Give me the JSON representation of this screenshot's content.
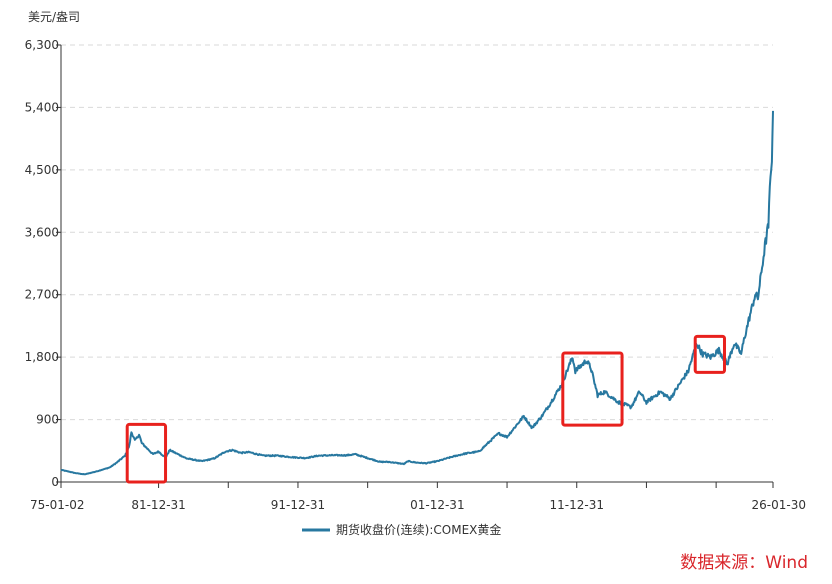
{
  "chart_data": {
    "type": "line",
    "ylabel": "美元/盎司",
    "ylim": [
      0,
      6300
    ],
    "yticks": [
      0,
      900,
      1800,
      2700,
      3600,
      4500,
      5400,
      6300
    ],
    "ytick_labels": [
      "0",
      "900",
      "1,800",
      "2,700",
      "3,600",
      "4,500",
      "5,400",
      "6,300"
    ],
    "xlim": [
      1975.0,
      2026.08
    ],
    "xticks": [
      1975.0,
      1982.0,
      1992.0,
      2002.0,
      2012.0,
      2026.08
    ],
    "xtick_labels": [
      "75-01-02",
      "81-12-31",
      "91-12-31",
      "01-12-31",
      "11-12-31",
      "26-01-30"
    ],
    "x_minor_ticks": [
      1987.0,
      1997.0,
      2007.0,
      2017.0,
      2022.0
    ],
    "grid": true,
    "legend_position": "bottom-center",
    "series": [
      {
        "name": "期货收盘价(连续):COMEX黄金",
        "color": "#2878a0",
        "x": [
          1975.0,
          1976.0,
          1976.7,
          1977.5,
          1978.5,
          1979.0,
          1979.6,
          1979.9,
          1980.05,
          1980.3,
          1980.6,
          1980.8,
          1981.2,
          1981.6,
          1982.0,
          1982.5,
          1982.8,
          1983.1,
          1983.5,
          1984.0,
          1985.1,
          1986.0,
          1986.8,
          1987.3,
          1987.9,
          1988.5,
          1989.5,
          1990.5,
          1991.5,
          1992.5,
          1993.5,
          1994.5,
          1995.5,
          1996.1,
          1997.0,
          1997.9,
          1998.5,
          1999.6,
          1999.9,
          2000.5,
          2001.2,
          2002.0,
          2003.0,
          2004.0,
          2005.0,
          2006.0,
          2006.4,
          2007.0,
          2008.2,
          2008.8,
          2009.5,
          2010.0,
          2010.9,
          2011.7,
          2011.9,
          2012.7,
          2013.0,
          2013.5,
          2014.0,
          2015.0,
          2015.9,
          2016.5,
          2017.0,
          2018.0,
          2018.7,
          2019.5,
          2020.0,
          2020.6,
          2021.0,
          2021.6,
          2022.2,
          2022.8,
          2023.3,
          2023.8,
          2024.0,
          2024.3,
          2024.8,
          2025.0,
          2025.3,
          2025.5,
          2025.75,
          2025.85,
          2026.0,
          2026.08
        ],
        "values": [
          175,
          130,
          110,
          150,
          210,
          280,
          380,
          520,
          720,
          600,
          680,
          560,
          480,
          400,
          440,
          350,
          460,
          430,
          390,
          340,
          300,
          340,
          440,
          460,
          420,
          430,
          380,
          380,
          360,
          345,
          380,
          385,
          385,
          400,
          345,
          290,
          290,
          260,
          300,
          280,
          270,
          300,
          360,
          410,
          440,
          630,
          700,
          650,
          950,
          780,
          950,
          1100,
          1400,
          1800,
          1600,
          1750,
          1650,
          1250,
          1300,
          1150,
          1080,
          1300,
          1150,
          1300,
          1200,
          1450,
          1600,
          2000,
          1850,
          1800,
          1900,
          1700,
          2000,
          1850,
          2050,
          2300,
          2700,
          2650,
          3100,
          3400,
          3700,
          4200,
          4700,
          5350
        ]
      }
    ],
    "annotations": [
      {
        "type": "highlight-box",
        "color": "#e8211d",
        "x_range": [
          1979.75,
          1982.5
        ],
        "y_range": [
          0,
          830
        ]
      },
      {
        "type": "highlight-box",
        "color": "#e8211d",
        "x_range": [
          2011.0,
          2015.25
        ],
        "y_range": [
          820,
          1860
        ]
      },
      {
        "type": "highlight-box",
        "color": "#e8211d",
        "x_range": [
          2020.5,
          2022.6
        ],
        "y_range": [
          1580,
          2100
        ]
      }
    ]
  },
  "source": "数据来源：Wind"
}
